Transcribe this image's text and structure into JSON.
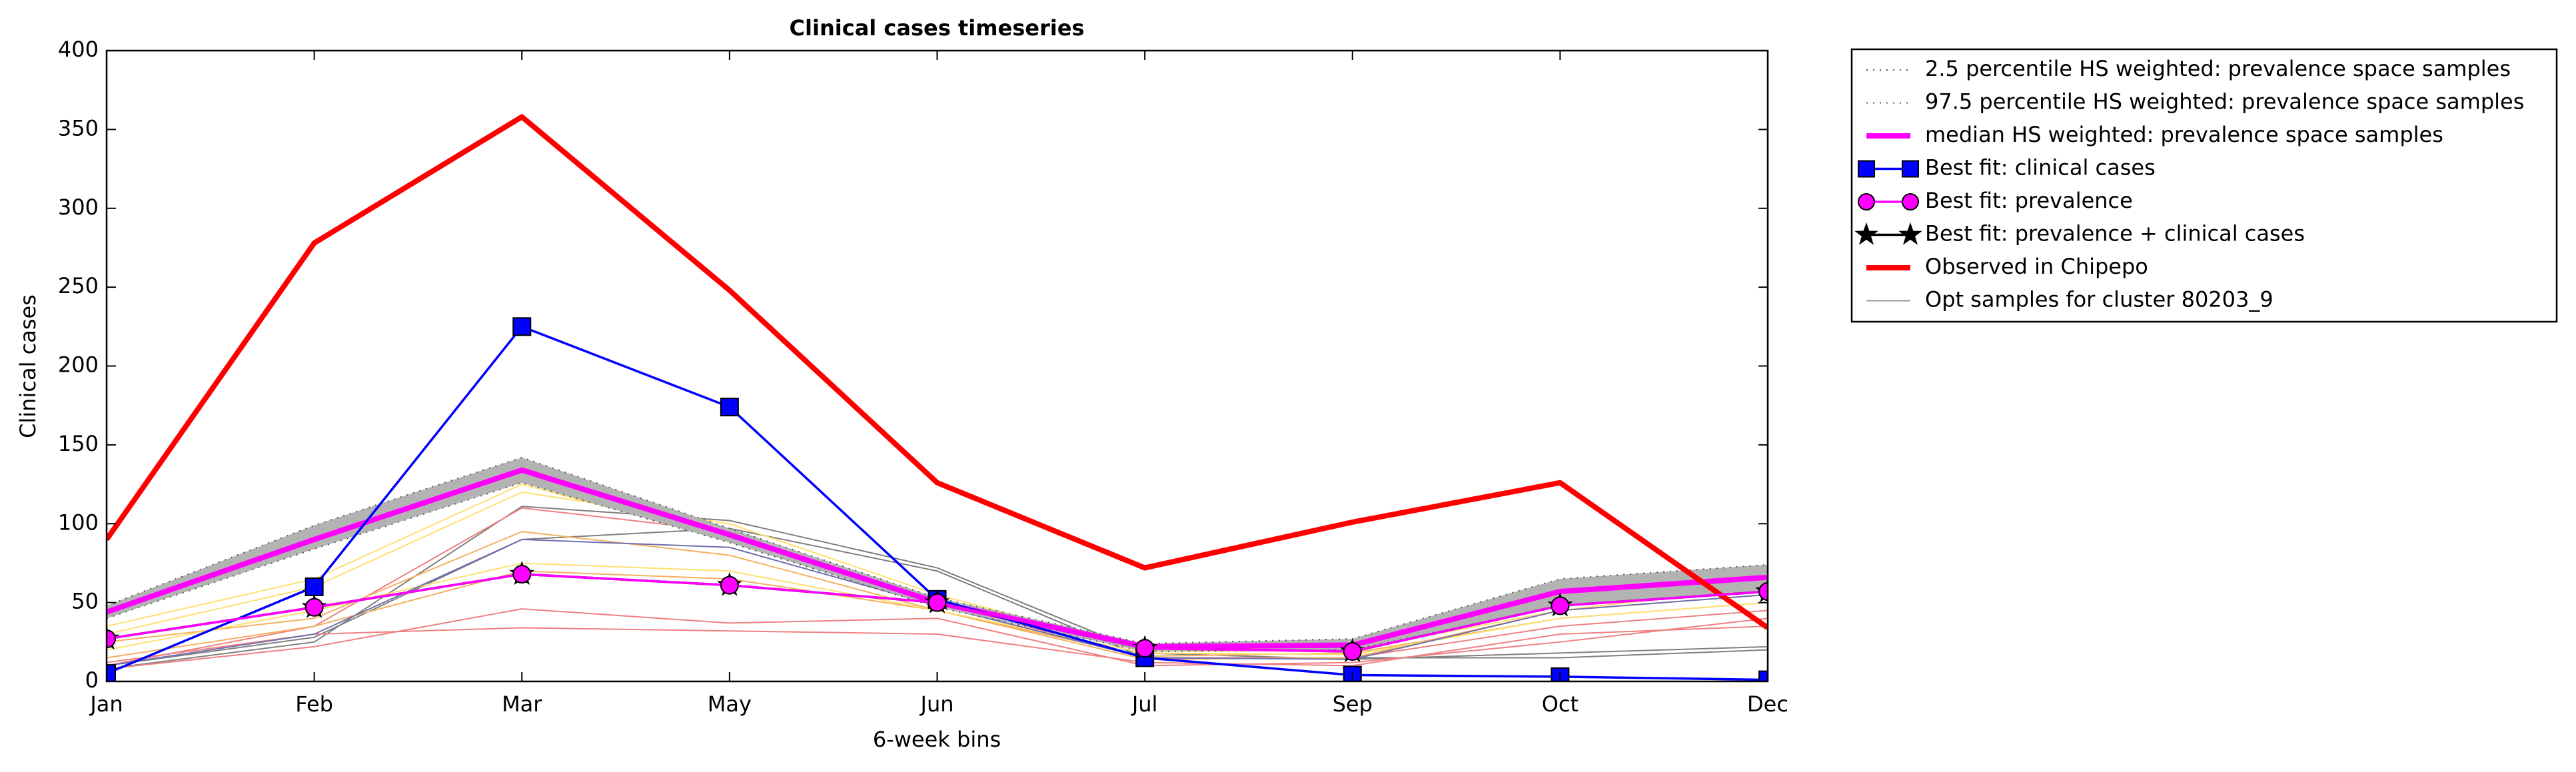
{
  "chart_data": {
    "type": "line",
    "title": "Clinical cases timeseries",
    "x_label": "6-week bins",
    "y_label": "Clinical cases",
    "categories": [
      "Jan",
      "Feb",
      "Mar",
      "May",
      "Jun",
      "Jul",
      "Sep",
      "Oct",
      "Dec"
    ],
    "ylim": [
      0,
      400
    ],
    "yticks": [
      0,
      50,
      100,
      150,
      200,
      250,
      300,
      350,
      400
    ],
    "band_color": "#b3b3b3",
    "series": [
      {
        "name": "2.5 percentile HS weighted: prevalence space samples",
        "color": "#555555",
        "linestyle": "dotted",
        "linewidth": 2,
        "marker": "none",
        "values": [
          40,
          84,
          126,
          88,
          47,
          19,
          20,
          48,
          57
        ]
      },
      {
        "name": "97.5 percentile HS weighted: prevalence space samples",
        "color": "#555555",
        "linestyle": "dotted",
        "linewidth": 2,
        "marker": "none",
        "values": [
          48,
          99,
          142,
          97,
          53,
          24,
          27,
          65,
          74
        ]
      },
      {
        "name": "median HS weighted: prevalence space samples",
        "color": "#ff00ff",
        "linestyle": "solid",
        "linewidth": 8,
        "marker": "none",
        "values": [
          44,
          90,
          134,
          93,
          50,
          22,
          23,
          57,
          66
        ]
      },
      {
        "name": "Best fit: clinical cases",
        "color": "#0000ff",
        "linestyle": "solid",
        "linewidth": 3.5,
        "marker": "square",
        "values": [
          5,
          60,
          225,
          174,
          52,
          15,
          4,
          3,
          1
        ]
      },
      {
        "name": "Best fit: prevalence",
        "color": "#ff00ff",
        "linestyle": "solid",
        "linewidth": 3.5,
        "marker": "circle",
        "values": [
          27,
          47,
          68,
          61,
          50,
          21,
          19,
          48,
          57
        ]
      },
      {
        "name": "Best fit: prevalence + clinical cases",
        "color": "#000000",
        "linestyle": "solid",
        "linewidth": 3.5,
        "marker": "star",
        "values": [
          27,
          47,
          68,
          61,
          50,
          21,
          19,
          48,
          57
        ]
      },
      {
        "name": "Observed in Chipepo",
        "color": "#ff0000",
        "linestyle": "solid",
        "linewidth": 8,
        "marker": "none",
        "values": [
          90,
          278,
          358,
          248,
          126,
          72,
          101,
          126,
          34
        ]
      },
      {
        "name": "Opt samples for cluster 80203_9",
        "color": "#999999",
        "linestyle": "solid",
        "linewidth": 2,
        "marker": "none",
        "samples": [
          {
            "color": "#808080",
            "values": [
              10,
              28,
              90,
              97,
              70,
              15,
              15,
              15,
              20
            ]
          },
          {
            "color": "#808080",
            "values": [
              8,
              25,
              111,
              102,
              72,
              18,
              14,
              18,
              22
            ]
          },
          {
            "color": "#f08080",
            "values": [
              8,
              22,
              46,
              37,
              40,
              10,
              12,
              25,
              40
            ]
          },
          {
            "color": "#f08080",
            "values": [
              12,
              30,
              34,
              32,
              30,
              12,
              10,
              30,
              35
            ]
          },
          {
            "color": "#f08080",
            "values": [
              10,
              35,
              110,
              95,
              50,
              15,
              15,
              35,
              45
            ]
          },
          {
            "color": "#f5b060",
            "values": [
              25,
              40,
              95,
              80,
              45,
              16,
              18,
              40,
              50
            ]
          },
          {
            "color": "#f5b060",
            "values": [
              15,
              35,
              70,
              65,
              45,
              14,
              15,
              45,
              55
            ]
          },
          {
            "color": "#ffe070",
            "values": [
              30,
              60,
              120,
              100,
              55,
              20,
              20,
              45,
              60
            ]
          },
          {
            "color": "#ffe070",
            "values": [
              20,
              45,
              75,
              70,
              45,
              18,
              17,
              40,
              50
            ]
          },
          {
            "color": "#ffe070",
            "values": [
              35,
              65,
              125,
              90,
              50,
              19,
              20,
              50,
              62
            ]
          },
          {
            "color": "#7070b0",
            "values": [
              10,
              30,
              90,
              85,
              48,
              15,
              14,
              45,
              55
            ]
          }
        ]
      }
    ]
  }
}
